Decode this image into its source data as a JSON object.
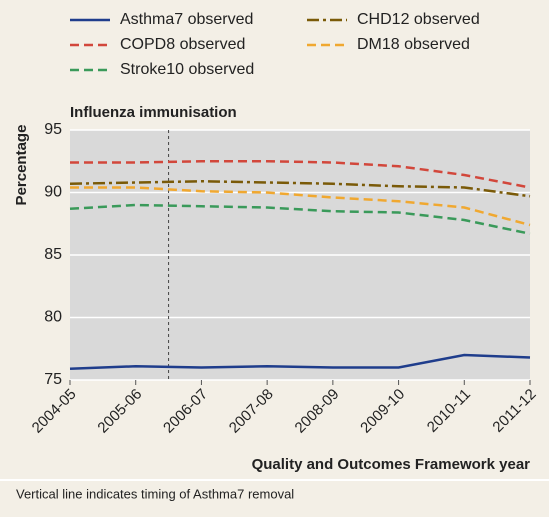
{
  "chart_data": {
    "type": "line",
    "title": "Influenza immunisation",
    "y_label": "Percentage",
    "x_label": "Quality and Outcomes Framework year",
    "note": "Vertical line indicates timing of Asthma7 removal",
    "categories": [
      "2004-05",
      "2005-06",
      "2006-07",
      "2007-08",
      "2008-09",
      "2009-10",
      "2010-11",
      "2011-12"
    ],
    "series": [
      {
        "name": "Asthma7 observed",
        "color": "#1f3d8c",
        "dash": "solid",
        "values": [
          75.9,
          76.1,
          76.0,
          76.1,
          76.0,
          76.0,
          77.0,
          76.8
        ]
      },
      {
        "name": "CHD12 observed",
        "color": "#7a5a08",
        "dash": "dashdot",
        "values": [
          90.7,
          90.8,
          90.9,
          90.8,
          90.7,
          90.5,
          90.4,
          89.7
        ]
      },
      {
        "name": "COPD8 observed",
        "color": "#d2473b",
        "dash": "dashed",
        "values": [
          92.4,
          92.4,
          92.5,
          92.5,
          92.4,
          92.1,
          91.4,
          90.4
        ]
      },
      {
        "name": "DM18 observed",
        "color": "#f0a830",
        "dash": "dashed",
        "values": [
          90.4,
          90.4,
          90.1,
          90.0,
          89.6,
          89.3,
          88.8,
          87.4
        ]
      },
      {
        "name": "Stroke10 observed",
        "color": "#3a9a5a",
        "dash": "dashed",
        "values": [
          88.7,
          89.0,
          88.9,
          88.8,
          88.5,
          88.4,
          87.8,
          86.7
        ]
      }
    ],
    "ylim": [
      75,
      95
    ],
    "yticks": [
      75,
      80,
      85,
      90,
      95
    ],
    "grid": true
  }
}
